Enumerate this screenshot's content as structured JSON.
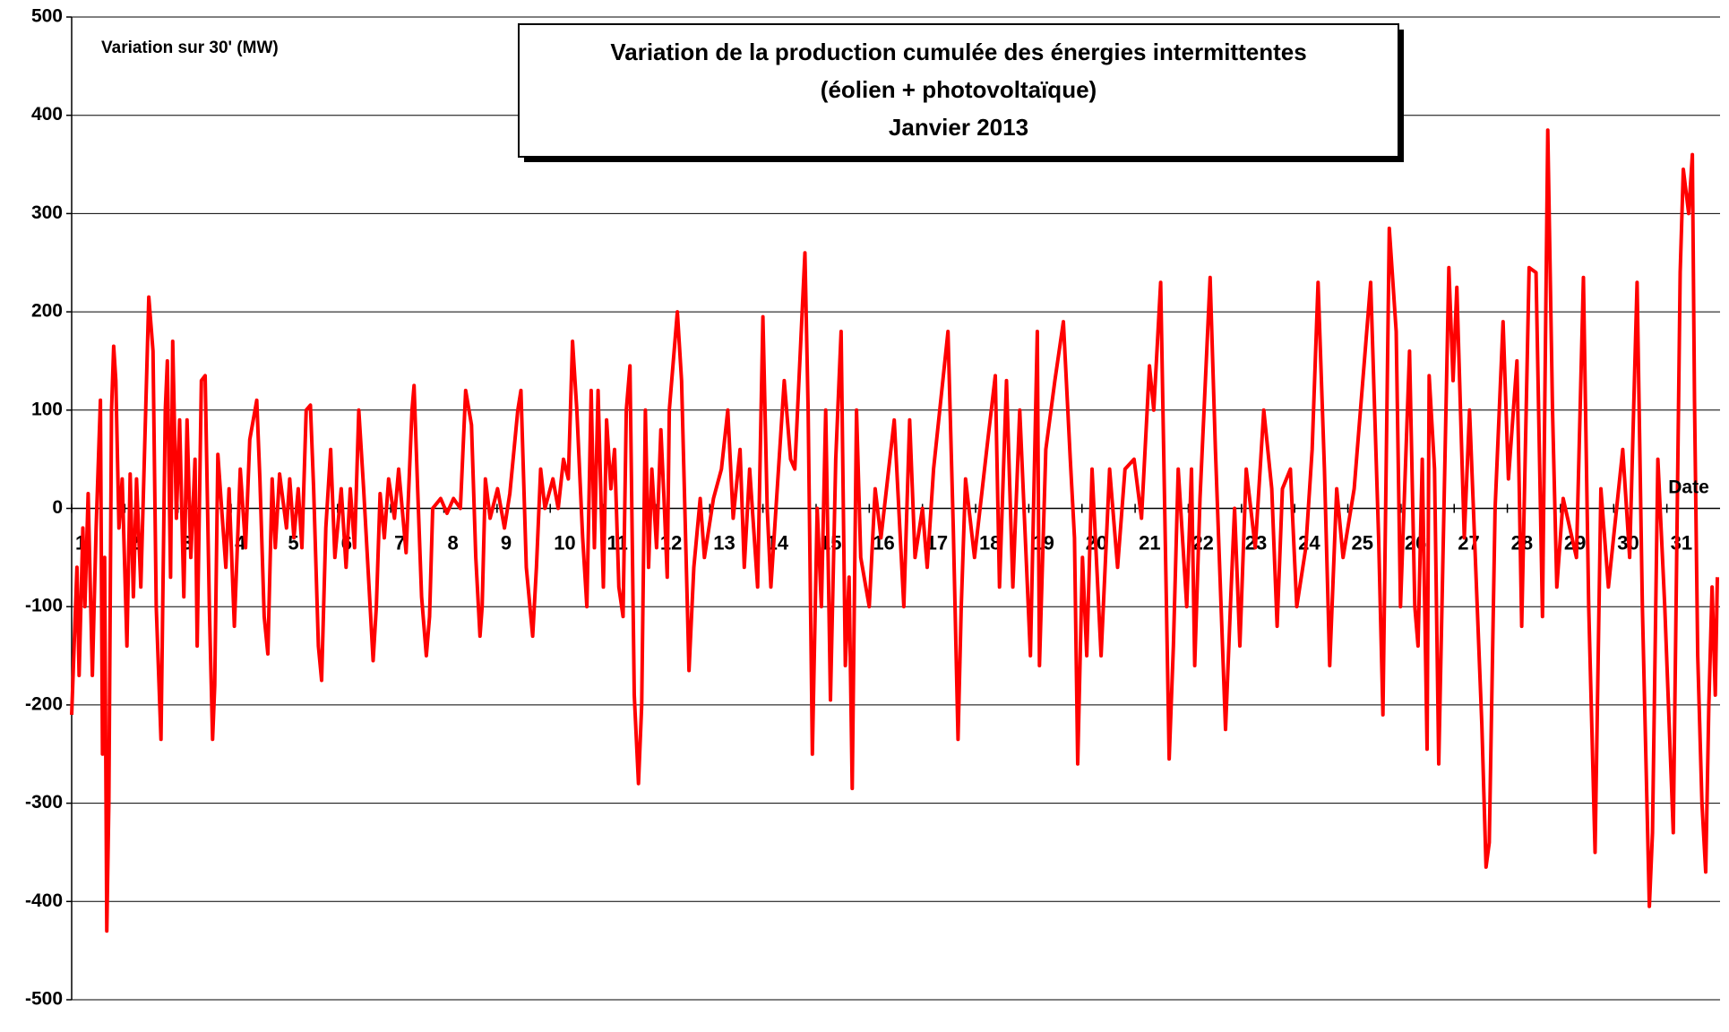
{
  "chart_data": {
    "type": "line",
    "title": "Variation de la production cumulée des énergies intermittentes",
    "subtitle": "(éolien + photovoltaïque)",
    "period": "Janvier 2013",
    "y_label": "Variation sur 30' (MW)",
    "x_label": "Date",
    "xlim": [
      1,
      32
    ],
    "xticks": [
      1,
      2,
      3,
      4,
      5,
      6,
      7,
      8,
      9,
      10,
      11,
      12,
      13,
      14,
      15,
      16,
      17,
      18,
      19,
      20,
      21,
      22,
      23,
      24,
      25,
      26,
      27,
      28,
      29,
      30,
      31
    ],
    "ylim": [
      -500,
      500
    ],
    "yticks": [
      -500,
      -400,
      -300,
      -200,
      -100,
      0,
      100,
      200,
      300,
      400,
      500
    ],
    "grid": true,
    "x": [
      1.0,
      1.1,
      1.14,
      1.21,
      1.25,
      1.31,
      1.39,
      1.46,
      1.54,
      1.58,
      1.62,
      1.66,
      1.7,
      1.75,
      1.79,
      1.83,
      1.89,
      1.95,
      2.04,
      2.1,
      2.16,
      2.22,
      2.3,
      2.45,
      2.53,
      2.59,
      2.68,
      2.76,
      2.8,
      2.86,
      2.9,
      2.97,
      3.03,
      3.11,
      3.17,
      3.24,
      3.32,
      3.36,
      3.44,
      3.51,
      3.59,
      3.65,
      3.69,
      3.75,
      3.82,
      3.9,
      3.96,
      4.06,
      4.17,
      4.27,
      4.35,
      4.48,
      4.54,
      4.62,
      4.69,
      4.77,
      4.83,
      4.91,
      5.04,
      5.1,
      5.18,
      5.26,
      5.33,
      5.41,
      5.49,
      5.55,
      5.64,
      5.7,
      5.78,
      5.87,
      5.95,
      6.07,
      6.16,
      6.24,
      6.32,
      6.4,
      6.49,
      6.67,
      6.73,
      6.8,
      6.88,
      6.96,
      7.07,
      7.15,
      7.29,
      7.4,
      7.44,
      7.5,
      7.58,
      7.67,
      7.73,
      7.79,
      7.94,
      8.06,
      8.18,
      8.31,
      8.41,
      8.52,
      8.6,
      8.68,
      8.72,
      8.78,
      8.87,
      9.01,
      9.14,
      9.24,
      9.39,
      9.45,
      9.55,
      9.67,
      9.74,
      9.82,
      9.9,
      10.05,
      10.15,
      10.25,
      10.34,
      10.42,
      10.5,
      10.61,
      10.69,
      10.77,
      10.83,
      10.9,
      11.0,
      11.06,
      11.14,
      11.21,
      11.29,
      11.37,
      11.43,
      11.5,
      11.58,
      11.66,
      11.72,
      11.79,
      11.85,
      11.91,
      12.0,
      12.08,
      12.14,
      12.2,
      12.24,
      12.39,
      12.47,
      12.61,
      12.7,
      12.82,
      12.9,
      13.07,
      13.22,
      13.34,
      13.44,
      13.57,
      13.65,
      13.75,
      13.9,
      14.0,
      14.08,
      14.15,
      14.4,
      14.52,
      14.6,
      14.79,
      14.85,
      14.93,
      15.02,
      15.1,
      15.18,
      15.27,
      15.37,
      15.47,
      15.55,
      15.62,
      15.68,
      15.76,
      15.84,
      16.0,
      16.11,
      16.22,
      16.47,
      16.65,
      16.76,
      16.86,
      17.0,
      17.09,
      17.21,
      17.48,
      17.58,
      17.67,
      17.73,
      17.81,
      17.98,
      18.23,
      18.37,
      18.45,
      18.58,
      18.7,
      18.83,
      19.03,
      19.16,
      19.2,
      19.32,
      19.49,
      19.65,
      19.78,
      19.86,
      19.92,
      20.01,
      20.09,
      20.19,
      20.36,
      20.52,
      20.67,
      20.81,
      20.98,
      21.12,
      21.27,
      21.35,
      21.48,
      21.64,
      21.72,
      21.81,
      21.97,
      22.06,
      22.12,
      22.22,
      22.41,
      22.51,
      22.7,
      22.8,
      22.87,
      22.97,
      23.09,
      23.26,
      23.42,
      23.57,
      23.67,
      23.77,
      23.92,
      24.04,
      24.21,
      24.33,
      24.44,
      24.56,
      24.66,
      24.79,
      24.91,
      25.12,
      25.43,
      25.58,
      25.66,
      25.78,
      25.91,
      25.99,
      26.16,
      26.26,
      26.32,
      26.4,
      26.49,
      26.53,
      26.63,
      26.71,
      26.9,
      26.98,
      27.05,
      27.19,
      27.29,
      27.52,
      27.6,
      27.66,
      27.77,
      27.92,
      28.02,
      28.18,
      28.27,
      28.41,
      28.54,
      28.66,
      28.76,
      28.85,
      28.93,
      29.05,
      29.3,
      29.43,
      29.53,
      29.65,
      29.76,
      29.9,
      30.17,
      30.3,
      30.44,
      30.54,
      30.67,
      30.73,
      30.83,
      30.96,
      31.12,
      31.25,
      31.31,
      31.41,
      31.48,
      31.52,
      31.58,
      31.66,
      31.73,
      31.79,
      31.85,
      31.91,
      31.95
    ],
    "series": [
      {
        "color": "#ff0000",
        "values": [
          -210,
          -60,
          -170,
          -20,
          -100,
          15,
          -170,
          -20,
          110,
          -250,
          -50,
          -430,
          -300,
          100,
          165,
          130,
          -20,
          30,
          -140,
          35,
          -90,
          30,
          -80,
          215,
          160,
          -100,
          -235,
          100,
          150,
          -70,
          170,
          -10,
          90,
          -90,
          90,
          -50,
          50,
          -140,
          130,
          135,
          -100,
          -235,
          -180,
          55,
          0,
          -60,
          20,
          -120,
          40,
          -40,
          70,
          110,
          30,
          -110,
          -148,
          30,
          -40,
          35,
          -20,
          30,
          -30,
          20,
          -40,
          100,
          105,
          20,
          -140,
          -175,
          -20,
          60,
          -50,
          20,
          -60,
          20,
          -40,
          100,
          20,
          -155,
          -100,
          15,
          -30,
          30,
          -10,
          40,
          -45,
          100,
          125,
          30,
          -90,
          -150,
          -110,
          0,
          10,
          -5,
          10,
          0,
          120,
          85,
          -50,
          -130,
          -100,
          30,
          -10,
          20,
          -20,
          15,
          100,
          120,
          -60,
          -130,
          -60,
          40,
          0,
          30,
          0,
          50,
          30,
          170,
          100,
          -30,
          -100,
          120,
          -40,
          120,
          -80,
          90,
          20,
          60,
          -80,
          -110,
          100,
          145,
          -190,
          -280,
          -200,
          100,
          -60,
          40,
          -40,
          80,
          10,
          -70,
          100,
          200,
          130,
          -165,
          -60,
          10,
          -50,
          10,
          40,
          100,
          -10,
          60,
          -60,
          40,
          -80,
          195,
          0,
          -80,
          130,
          50,
          40,
          260,
          100,
          -250,
          0,
          -100,
          100,
          -195,
          50,
          180,
          -160,
          -70,
          -285,
          100,
          -50,
          -100,
          20,
          -30,
          90,
          -100,
          90,
          -50,
          0,
          -60,
          40,
          180,
          -20,
          -235,
          -100,
          30,
          -50,
          70,
          135,
          -80,
          130,
          -80,
          100,
          -150,
          180,
          -160,
          60,
          130,
          190,
          50,
          -30,
          -260,
          -50,
          -150,
          40,
          -150,
          40,
          -60,
          40,
          50,
          -10,
          145,
          100,
          230,
          -255,
          -140,
          40,
          -100,
          40,
          -160,
          10,
          235,
          60,
          -225,
          -90,
          0,
          -140,
          40,
          -40,
          100,
          20,
          -120,
          20,
          40,
          -100,
          -40,
          60,
          230,
          40,
          -160,
          20,
          -50,
          20,
          230,
          -30,
          -210,
          285,
          180,
          -100,
          160,
          -100,
          -140,
          50,
          -245,
          135,
          40,
          -260,
          245,
          130,
          225,
          -30,
          100,
          -220,
          -365,
          -340,
          0,
          190,
          30,
          150,
          -120,
          245,
          240,
          -110,
          385,
          100,
          -80,
          10,
          -50,
          235,
          -100,
          -350,
          20,
          -80,
          60,
          -50,
          230,
          -100,
          -405,
          -330,
          50,
          -100,
          -330,
          240,
          345,
          300,
          360,
          110,
          -150,
          -300,
          -370,
          -200,
          -80,
          -190,
          -70
        ]
      }
    ]
  }
}
